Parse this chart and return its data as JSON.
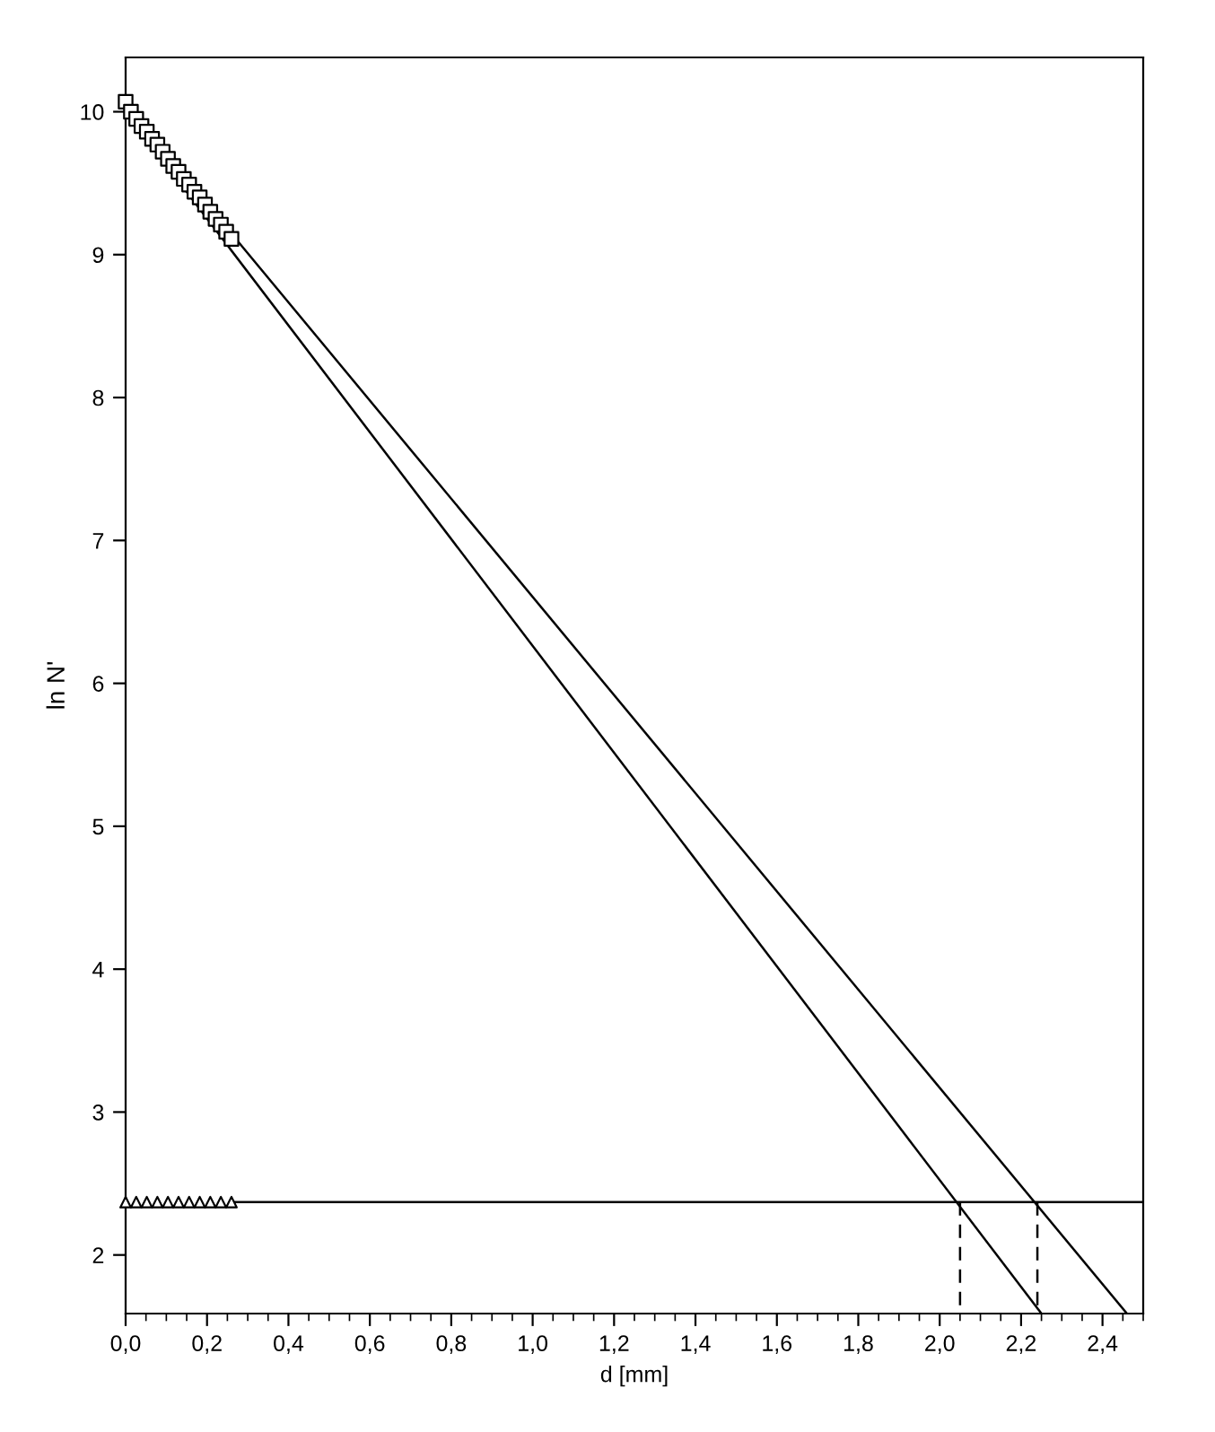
{
  "chart_data": {
    "type": "scatter",
    "xlabel": "d [mm]",
    "ylabel": "ln N'",
    "xlim": [
      0,
      2.5
    ],
    "ylim": [
      1.59,
      10.38
    ],
    "xticks": [
      {
        "value": 0,
        "label": "0,0"
      },
      {
        "value": 0.2,
        "label": "0,2"
      },
      {
        "value": 0.4,
        "label": "0,4"
      },
      {
        "value": 0.6,
        "label": "0,6"
      },
      {
        "value": 0.8,
        "label": "0,8"
      },
      {
        "value": 1.0,
        "label": "1,0"
      },
      {
        "value": 1.2,
        "label": "1,2"
      },
      {
        "value": 1.4,
        "label": "1,4"
      },
      {
        "value": 1.6,
        "label": "1,6"
      },
      {
        "value": 1.8,
        "label": "1,8"
      },
      {
        "value": 2.0,
        "label": "2,0"
      },
      {
        "value": 2.2,
        "label": "2,2"
      },
      {
        "value": 2.4,
        "label": "2,4"
      }
    ],
    "yticks": [
      2,
      3,
      4,
      5,
      6,
      7,
      8,
      9,
      10
    ],
    "grid": false,
    "legend": false,
    "series": [
      {
        "type": "line",
        "color": "#000000",
        "marker": "none",
        "line_style": "solid",
        "x": [
          0.26,
          2.5
        ],
        "values": [
          2.37,
          2.37
        ]
      },
      {
        "type": "line",
        "color": "#000000",
        "marker": "none",
        "line_style": "solid",
        "x": [
          0,
          2.25
        ],
        "values": [
          10.0,
          1.59
        ]
      },
      {
        "type": "line",
        "color": "#000000",
        "marker": "none",
        "line_style": "solid",
        "x": [
          0,
          2.46
        ],
        "values": [
          10.04,
          1.59
        ]
      },
      {
        "type": "line",
        "color": "#000000",
        "marker": "none",
        "line_style": "dashed",
        "x": [
          2.05,
          2.05
        ],
        "values": [
          2.37,
          1.59
        ]
      },
      {
        "type": "line",
        "color": "#000000",
        "marker": "none",
        "line_style": "dashed",
        "x": [
          2.24,
          2.24
        ],
        "values": [
          2.37,
          1.59
        ]
      },
      {
        "color": "#000000",
        "marker": "square",
        "x": [
          0,
          0.013,
          0.026,
          0.039,
          0.052,
          0.065,
          0.078,
          0.091,
          0.104,
          0.117,
          0.13,
          0.143,
          0.156,
          0.169,
          0.182,
          0.195,
          0.208,
          0.221,
          0.234,
          0.247,
          0.26
        ],
        "values": [
          10.07,
          10.0,
          9.95,
          9.9,
          9.86,
          9.81,
          9.77,
          9.72,
          9.67,
          9.62,
          9.58,
          9.53,
          9.49,
          9.44,
          9.4,
          9.35,
          9.3,
          9.25,
          9.21,
          9.16,
          9.11
        ]
      },
      {
        "color": "#000000",
        "marker": "triangle",
        "x": [
          0,
          0.026,
          0.052,
          0.078,
          0.104,
          0.13,
          0.156,
          0.182,
          0.208,
          0.234,
          0.26
        ],
        "values": [
          2.37,
          2.37,
          2.37,
          2.37,
          2.37,
          2.37,
          2.37,
          2.37,
          2.37,
          2.37,
          2.37
        ]
      }
    ]
  }
}
